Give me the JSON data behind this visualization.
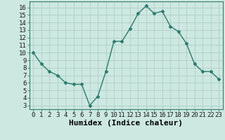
{
  "x": [
    0,
    1,
    2,
    3,
    4,
    5,
    6,
    7,
    8,
    9,
    10,
    11,
    12,
    13,
    14,
    15,
    16,
    17,
    18,
    19,
    20,
    21,
    22,
    23
  ],
  "y": [
    10,
    8.5,
    7.5,
    7,
    6,
    5.8,
    5.8,
    3.0,
    4.2,
    7.5,
    11.5,
    11.5,
    13.2,
    15.2,
    16.2,
    15.2,
    15.5,
    13.5,
    12.8,
    11.2,
    8.5,
    7.5,
    7.5,
    6.5
  ],
  "line_color": "#2d7a6e",
  "marker": "D",
  "marker_size": 2.5,
  "bg_color": "#cce8e0",
  "grid_color": "#b0cec8",
  "xlabel": "Humidex (Indice chaleur)",
  "xlim": [
    -0.5,
    23.5
  ],
  "ylim": [
    2.5,
    16.8
  ],
  "xticks": [
    0,
    1,
    2,
    3,
    4,
    5,
    6,
    7,
    8,
    9,
    10,
    11,
    12,
    13,
    14,
    15,
    16,
    17,
    18,
    19,
    20,
    21,
    22,
    23
  ],
  "yticks": [
    3,
    4,
    5,
    6,
    7,
    8,
    9,
    10,
    11,
    12,
    13,
    14,
    15,
    16
  ],
  "tick_fontsize": 6.5,
  "label_fontsize": 8,
  "spine_color": "#3a7a70"
}
